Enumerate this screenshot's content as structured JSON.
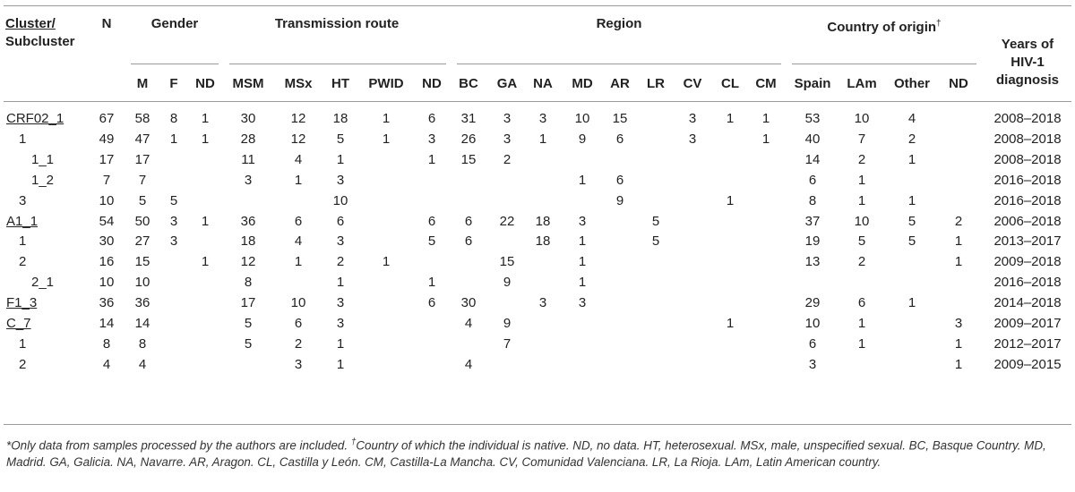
{
  "headers": {
    "cluster_line1": "Cluster/",
    "cluster_line2": "Subcluster",
    "n": "N",
    "gender": "Gender",
    "transmission": "Transmission route",
    "region": "Region",
    "country": "Country of origin",
    "country_mark": "†",
    "years_line1": "Years of",
    "years_line2": "HIV-1",
    "years_line3": "diagnosis",
    "sub": [
      "M",
      "F",
      "ND",
      "MSM",
      "MSx",
      "HT",
      "PWID",
      "ND",
      "BC",
      "GA",
      "NA",
      "MD",
      "AR",
      "LR",
      "CV",
      "CL",
      "CM",
      "Spain",
      "LAm",
      "Other",
      "ND"
    ]
  },
  "rows": [
    {
      "label": "CRF02_1",
      "indent": 0,
      "underline": true,
      "cells": [
        "67",
        "58",
        "8",
        "1",
        "30",
        "12",
        "18",
        "1",
        "6",
        "31",
        "3",
        "3",
        "10",
        "15",
        "",
        "3",
        "1",
        "1",
        "53",
        "10",
        "4",
        "",
        "2008–2018"
      ]
    },
    {
      "label": "1",
      "indent": 1,
      "underline": false,
      "cells": [
        "49",
        "47",
        "1",
        "1",
        "28",
        "12",
        "5",
        "1",
        "3",
        "26",
        "3",
        "1",
        "9",
        "6",
        "",
        "3",
        "",
        "1",
        "40",
        "7",
        "2",
        "",
        "2008–2018"
      ]
    },
    {
      "label": "1_1",
      "indent": 2,
      "underline": false,
      "cells": [
        "17",
        "17",
        "",
        "",
        "11",
        "4",
        "1",
        "",
        "1",
        "15",
        "2",
        "",
        "",
        "",
        "",
        "",
        "",
        "",
        "14",
        "2",
        "1",
        "",
        "2008–2018"
      ]
    },
    {
      "label": "1_2",
      "indent": 2,
      "underline": false,
      "cells": [
        "7",
        "7",
        "",
        "",
        "3",
        "1",
        "3",
        "",
        "",
        "",
        "",
        "",
        "1",
        "6",
        "",
        "",
        "",
        "",
        "6",
        "1",
        "",
        "",
        "2016–2018"
      ]
    },
    {
      "label": "3",
      "indent": 1,
      "underline": false,
      "cells": [
        "10",
        "5",
        "5",
        "",
        "",
        "",
        "10",
        "",
        "",
        "",
        "",
        "",
        "",
        "9",
        "",
        "",
        "1",
        "",
        "8",
        "1",
        "1",
        "",
        "2016–2018"
      ]
    },
    {
      "label": "A1_1",
      "indent": 0,
      "underline": true,
      "cells": [
        "54",
        "50",
        "3",
        "1",
        "36",
        "6",
        "6",
        "",
        "6",
        "6",
        "22",
        "18",
        "3",
        "",
        "5",
        "",
        "",
        "",
        "37",
        "10",
        "5",
        "2",
        "2006–2018"
      ]
    },
    {
      "label": "1",
      "indent": 1,
      "underline": false,
      "cells": [
        "30",
        "27",
        "3",
        "",
        "18",
        "4",
        "3",
        "",
        "5",
        "6",
        "",
        "18",
        "1",
        "",
        "5",
        "",
        "",
        "",
        "19",
        "5",
        "5",
        "1",
        "2013–2017"
      ]
    },
    {
      "label": "2",
      "indent": 1,
      "underline": false,
      "cells": [
        "16",
        "15",
        "",
        "1",
        "12",
        "1",
        "2",
        "1",
        "",
        "",
        "15",
        "",
        "1",
        "",
        "",
        "",
        "",
        "",
        "13",
        "2",
        "",
        "1",
        "2009–2018"
      ]
    },
    {
      "label": "2_1",
      "indent": 2,
      "underline": false,
      "cells": [
        "10",
        "10",
        "",
        "",
        "8",
        "",
        "1",
        "",
        "1",
        "",
        "9",
        "",
        "1",
        "",
        "",
        "",
        "",
        "",
        "",
        "",
        "",
        "",
        "2016–2018"
      ]
    },
    {
      "label": "F1_3",
      "indent": 0,
      "underline": true,
      "cells": [
        "36",
        "36",
        "",
        "",
        "17",
        "10",
        "3",
        "",
        "6",
        "30",
        "",
        "3",
        "3",
        "",
        "",
        "",
        "",
        "",
        "29",
        "6",
        "1",
        "",
        "2014–2018"
      ]
    },
    {
      "label": "C_7",
      "indent": 0,
      "underline": true,
      "cells": [
        "14",
        "14",
        "",
        "",
        "5",
        "6",
        "3",
        "",
        "",
        "4",
        "9",
        "",
        "",
        "",
        "",
        "",
        "1",
        "",
        "10",
        "1",
        "",
        "3",
        "2009–2017"
      ]
    },
    {
      "label": "1",
      "indent": 1,
      "underline": false,
      "cells": [
        "8",
        "8",
        "",
        "",
        "5",
        "2",
        "1",
        "",
        "",
        "",
        "7",
        "",
        "",
        "",
        "",
        "",
        "",
        "",
        "6",
        "1",
        "",
        "1",
        "2012–2017"
      ]
    },
    {
      "label": "2",
      "indent": 1,
      "underline": false,
      "cells": [
        "4",
        "4",
        "",
        "",
        "",
        "3",
        "1",
        "",
        "",
        "4",
        "",
        "",
        "",
        "",
        "",
        "",
        "",
        "",
        "3",
        "",
        "",
        "1",
        "2009–2015"
      ]
    }
  ],
  "footnote": {
    "mark1": "*",
    "text1": "Only data from samples processed by the authors are included. ",
    "mark2": "†",
    "text2": "Country of which the individual is native. ND, no data. HT, heterosexual. MSx, male, unspecified sexual. BC, Basque Country. MD, Madrid. GA, Galicia. NA, Navarre. AR, Aragon. CL, Castilla y León. CM, Castilla-La Mancha. CV, Comunidad Valenciana. LR, La Rioja. LAm, Latin American country."
  }
}
